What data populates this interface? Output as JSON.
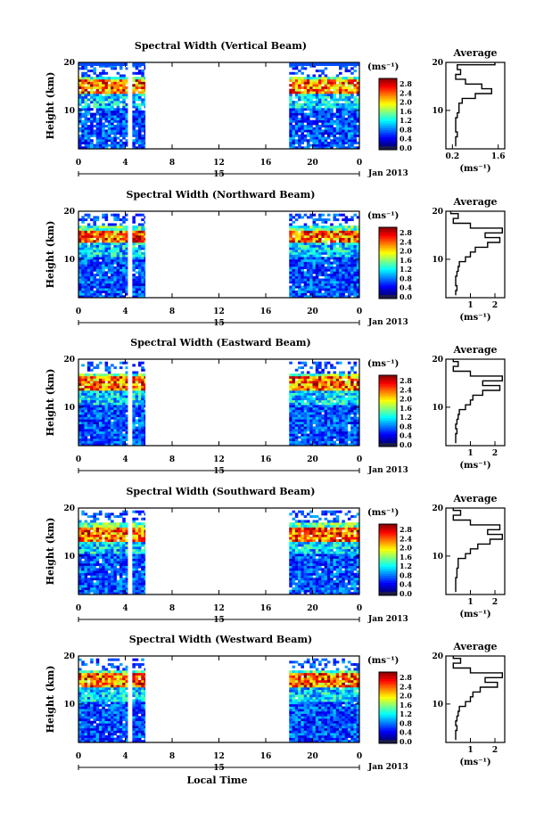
{
  "figure": {
    "xlabel": "Local Time",
    "date_label": "Jan 2013",
    "day_label": "15",
    "colorbar_unit": "(ms⁻¹)",
    "colorbar_ticks": [
      "2.8",
      "2.4",
      "2.0",
      "1.6",
      "1.2",
      "0.8",
      "0.4",
      "0.0"
    ],
    "avg_title": "Average",
    "avg_xlabel": "(ms⁻¹)",
    "ylabel": "Height (km)"
  },
  "chart_data": [
    {
      "type": "heatmap",
      "title": "Spectral Width (Vertical Beam)",
      "ylabel": "Height (km)",
      "x_ticks": [
        "0",
        "4",
        "8",
        "12",
        "16",
        "20",
        "0"
      ],
      "y_ticks": [
        "20",
        "10"
      ],
      "xlim": [
        0,
        24
      ],
      "ylim": [
        2,
        20
      ],
      "colorscale_range": [
        0.0,
        3.0
      ],
      "data_intervals_hours": [
        [
          0,
          4.2
        ],
        [
          4.6,
          5.7
        ],
        [
          18,
          24
        ]
      ],
      "high_width_layer_km": [
        13.5,
        16
      ],
      "average_profile": {
        "x_ticks": [
          "0.2",
          "1.6"
        ],
        "xlim": [
          0,
          1.8
        ],
        "heights_km": [
          3,
          4,
          5,
          6,
          7,
          8,
          9,
          10,
          11,
          12,
          13,
          14,
          15,
          16,
          17,
          18,
          19,
          20
        ],
        "values": [
          0.3,
          0.3,
          0.35,
          0.3,
          0.3,
          0.3,
          0.35,
          0.4,
          0.4,
          0.5,
          0.9,
          1.4,
          1.1,
          0.6,
          0.3,
          0.45,
          0.35,
          1.5
        ]
      }
    },
    {
      "type": "heatmap",
      "title": "Spectral Width (Northward Beam)",
      "ylabel": "Height (km)",
      "x_ticks": [
        "0",
        "4",
        "8",
        "12",
        "16",
        "20",
        "0"
      ],
      "y_ticks": [
        "20",
        "10"
      ],
      "xlim": [
        0,
        24
      ],
      "ylim": [
        2,
        20
      ],
      "colorscale_range": [
        0.0,
        3.0
      ],
      "data_intervals_hours": [
        [
          0,
          4.2
        ],
        [
          4.6,
          5.7
        ],
        [
          18,
          24
        ]
      ],
      "high_width_layer_km": [
        13.5,
        15.5
      ],
      "average_profile": {
        "x_ticks": [
          "1",
          "2"
        ],
        "xlim": [
          0,
          2.4
        ],
        "heights_km": [
          3,
          4,
          5,
          6,
          7,
          8,
          9,
          10,
          11,
          12,
          13,
          14,
          15,
          16,
          17,
          18,
          19,
          20
        ],
        "values": [
          0.4,
          0.45,
          0.4,
          0.4,
          0.45,
          0.5,
          0.55,
          0.8,
          1.0,
          1.2,
          1.7,
          2.2,
          1.6,
          2.3,
          1.0,
          0.3,
          0.5,
          0.2
        ]
      }
    },
    {
      "type": "heatmap",
      "title": "Spectral Width (Eastward Beam)",
      "ylabel": "Height (km)",
      "x_ticks": [
        "0",
        "4",
        "8",
        "12",
        "16",
        "20",
        "0"
      ],
      "y_ticks": [
        "20",
        "10"
      ],
      "xlim": [
        0,
        24
      ],
      "ylim": [
        2,
        20
      ],
      "colorscale_range": [
        0.0,
        3.0
      ],
      "data_intervals_hours": [
        [
          0,
          4.2
        ],
        [
          4.6,
          5.7
        ],
        [
          18,
          24
        ]
      ],
      "high_width_layer_km": [
        13.5,
        16
      ],
      "average_profile": {
        "x_ticks": [
          "1",
          "2"
        ],
        "xlim": [
          0,
          2.4
        ],
        "heights_km": [
          3,
          4,
          5,
          6,
          7,
          8,
          9,
          10,
          11,
          12,
          13,
          14,
          15,
          16,
          17,
          18,
          19,
          20
        ],
        "values": [
          0.4,
          0.4,
          0.45,
          0.4,
          0.45,
          0.5,
          0.55,
          0.8,
          1.0,
          1.1,
          1.5,
          2.2,
          1.5,
          2.3,
          1.0,
          0.3,
          0.5,
          0.3
        ]
      }
    },
    {
      "type": "heatmap",
      "title": "Spectral Width (Southward Beam)",
      "ylabel": "Height (km)",
      "x_ticks": [
        "0",
        "4",
        "8",
        "12",
        "16",
        "20",
        "0"
      ],
      "y_ticks": [
        "20",
        "10"
      ],
      "xlim": [
        0,
        24
      ],
      "ylim": [
        2,
        20
      ],
      "colorscale_range": [
        0.0,
        3.0
      ],
      "data_intervals_hours": [
        [
          0,
          4.2
        ],
        [
          4.6,
          5.7
        ],
        [
          18,
          24
        ]
      ],
      "high_width_layer_km": [
        13,
        15.5
      ],
      "average_profile": {
        "x_ticks": [
          "1",
          "2"
        ],
        "xlim": [
          0,
          2.4
        ],
        "heights_km": [
          3,
          4,
          5,
          6,
          7,
          8,
          9,
          10,
          11,
          12,
          13,
          14,
          15,
          16,
          17,
          18,
          19,
          20
        ],
        "values": [
          0.4,
          0.4,
          0.4,
          0.45,
          0.45,
          0.5,
          0.5,
          0.8,
          1.0,
          1.3,
          1.8,
          2.3,
          1.7,
          2.2,
          1.0,
          0.3,
          0.6,
          0.3
        ]
      }
    },
    {
      "type": "heatmap",
      "title": "Spectral Width (Westward Beam)",
      "ylabel": "Height (km)",
      "x_ticks": [
        "0",
        "4",
        "8",
        "12",
        "16",
        "20",
        "0"
      ],
      "y_ticks": [
        "20",
        "10"
      ],
      "xlim": [
        0,
        24
      ],
      "ylim": [
        2,
        20
      ],
      "colorscale_range": [
        0.0,
        3.0
      ],
      "data_intervals_hours": [
        [
          0,
          4.2
        ],
        [
          4.6,
          5.7
        ],
        [
          18,
          24
        ]
      ],
      "high_width_layer_km": [
        13.5,
        16
      ],
      "average_profile": {
        "x_ticks": [
          "1",
          "2"
        ],
        "xlim": [
          0,
          2.4
        ],
        "heights_km": [
          3,
          4,
          5,
          6,
          7,
          8,
          9,
          10,
          11,
          12,
          13,
          14,
          15,
          16,
          17,
          18,
          19,
          20
        ],
        "values": [
          0.4,
          0.4,
          0.45,
          0.4,
          0.45,
          0.5,
          0.55,
          0.8,
          1.0,
          1.1,
          1.4,
          2.1,
          1.6,
          2.3,
          1.0,
          0.3,
          0.6,
          0.3
        ]
      }
    }
  ]
}
